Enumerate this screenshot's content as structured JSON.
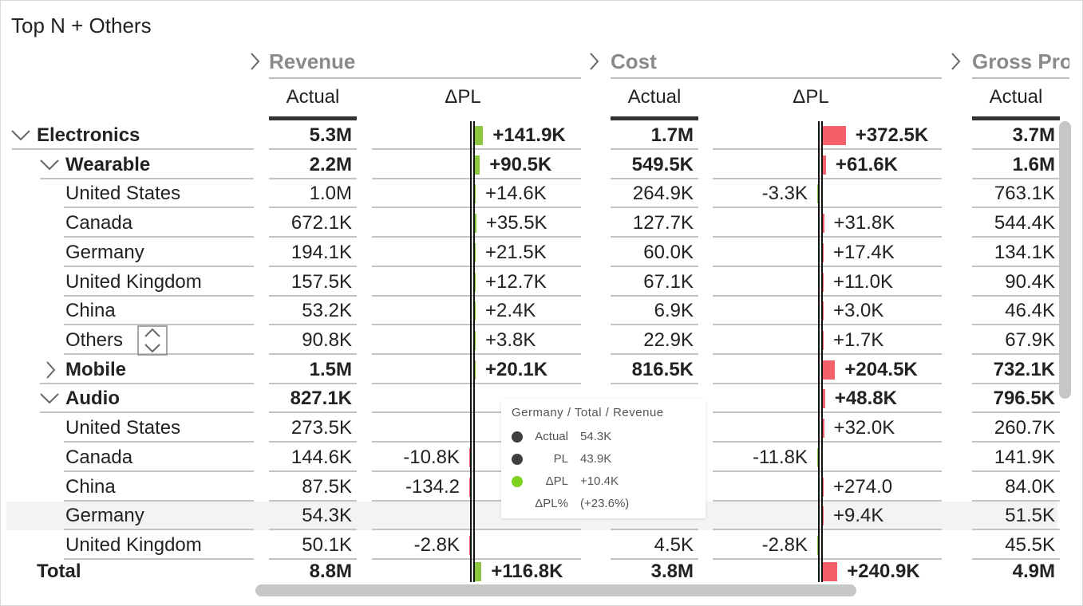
{
  "header": {
    "title": "Top N + Others"
  },
  "table": {
    "groups": [
      {
        "name": "Revenue",
        "columns": [
          "Actual",
          "ΔPL"
        ],
        "delta_colors": {
          "positive": "#8cc63f",
          "negative": "#f4606a"
        }
      },
      {
        "name": "Cost",
        "columns": [
          "Actual",
          "ΔPL"
        ],
        "delta_colors": {
          "positive": "#f4606a",
          "negative": "#8cc63f"
        }
      },
      {
        "name": "Gross Profit",
        "columns": [
          "Actual"
        ]
      }
    ],
    "rows": [
      {
        "label": "Electronics",
        "level": 0,
        "state": "expanded",
        "cells": [
          "5.3M",
          "+141.9K",
          "1.7M",
          "+372.5K",
          "3.7M"
        ]
      },
      {
        "label": "Wearable",
        "level": 1,
        "state": "expanded",
        "cells": [
          "2.2M",
          "+90.5K",
          "549.5K",
          "+61.6K",
          "1.6M"
        ]
      },
      {
        "label": "United States",
        "level": 2,
        "cells": [
          "1.0M",
          "+14.6K",
          "264.9K",
          "-3.3K",
          "763.1K"
        ]
      },
      {
        "label": "Canada",
        "level": 2,
        "cells": [
          "672.1K",
          "+35.5K",
          "127.7K",
          "+31.8K",
          "544.4K"
        ]
      },
      {
        "label": "Germany",
        "level": 2,
        "cells": [
          "194.1K",
          "+21.5K",
          "60.0K",
          "+17.4K",
          "134.1K"
        ]
      },
      {
        "label": "United Kingdom",
        "level": 2,
        "cells": [
          "157.5K",
          "+12.7K",
          "67.1K",
          "+11.0K",
          "90.4K"
        ]
      },
      {
        "label": "China",
        "level": 2,
        "cells": [
          "53.2K",
          "+2.4K",
          "6.9K",
          "+3.0K",
          "46.4K"
        ]
      },
      {
        "label": "Others",
        "level": 2,
        "top_n_control": true,
        "cells": [
          "90.8K",
          "+3.8K",
          "22.9K",
          "+1.7K",
          "67.9K"
        ]
      },
      {
        "label": "Mobile",
        "level": 1,
        "state": "collapsed",
        "cells": [
          "1.5M",
          "+20.1K",
          "816.5K",
          "+204.5K",
          "732.1K"
        ]
      },
      {
        "label": "Audio",
        "level": 1,
        "state": "expanded",
        "cells": [
          "827.1K",
          null,
          null,
          "+48.8K",
          "796.5K"
        ]
      },
      {
        "label": "United States",
        "level": 2,
        "cells": [
          "273.5K",
          null,
          null,
          "+32.0K",
          "260.7K"
        ]
      },
      {
        "label": "Canada",
        "level": 2,
        "cells": [
          "144.6K",
          "-10.8K",
          null,
          "-11.8K",
          "141.9K"
        ]
      },
      {
        "label": "China",
        "level": 2,
        "cells": [
          "87.5K",
          "-134.2",
          null,
          "+274.0",
          "84.0K"
        ]
      },
      {
        "label": "Germany",
        "level": 2,
        "highlighted": true,
        "cells": [
          "54.3K",
          null,
          null,
          "+9.4K",
          "51.5K"
        ]
      },
      {
        "label": "United Kingdom",
        "level": 2,
        "cells": [
          "50.1K",
          "-2.8K",
          "4.5K",
          "-2.8K",
          "45.5K"
        ]
      }
    ],
    "total": {
      "label": "Total",
      "cells": [
        "8.8M",
        "+116.8K",
        "3.8M",
        "+240.9K",
        "4.9M"
      ]
    }
  },
  "tooltip": {
    "title": "Germany / Total / Revenue",
    "rows": [
      {
        "label": "Actual",
        "value": "54.3K",
        "color": "#404040"
      },
      {
        "label": "PL",
        "value": "43.9K",
        "color": "#404040"
      },
      {
        "label": "ΔPL",
        "value": "+10.4K",
        "color": "#7ed321"
      },
      {
        "label": "ΔPL%",
        "value": "(+23.6%)"
      }
    ]
  }
}
